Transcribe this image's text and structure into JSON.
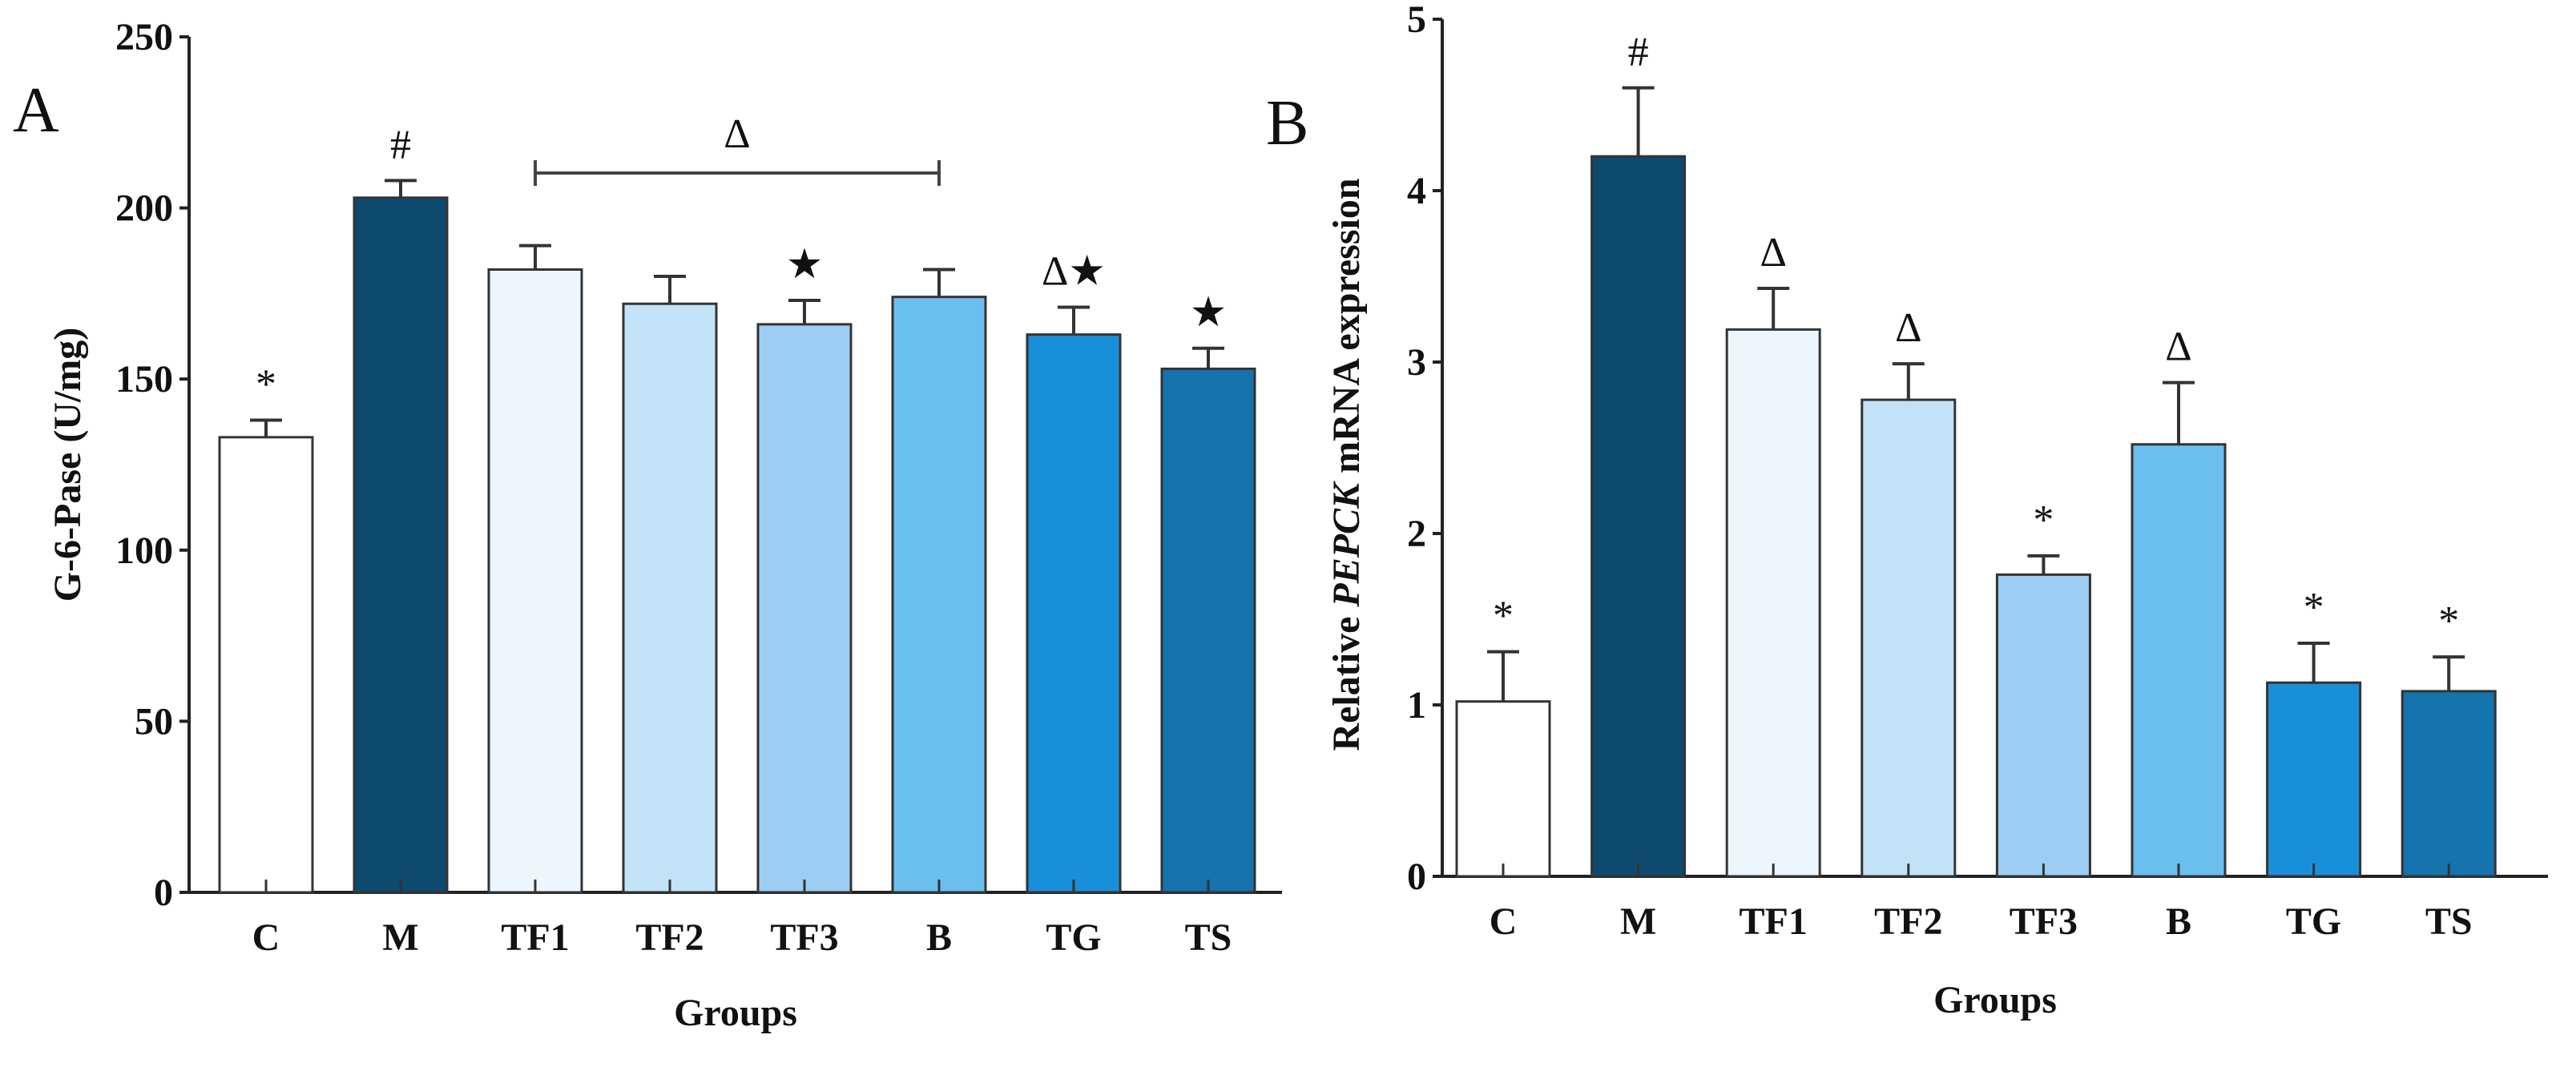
{
  "chart_data": [
    {
      "type": "bar",
      "panel_label": "A",
      "title": "",
      "xlabel": "Groups",
      "ylabel": "G-6-Pase (U/mg)",
      "ylim": [
        0,
        250
      ],
      "yticks": [
        0,
        50,
        100,
        150,
        200,
        250
      ],
      "categories": [
        "C",
        "M",
        "TF1",
        "TF2",
        "TF3",
        "B",
        "TG",
        "TS"
      ],
      "values": [
        133,
        203,
        182,
        172,
        166,
        174,
        163,
        153
      ],
      "errors": [
        5,
        5,
        7,
        8,
        7,
        8,
        8,
        6
      ],
      "annotations": [
        "*",
        "#",
        "",
        "",
        "★",
        "",
        "Δ★",
        "★"
      ],
      "bracket": {
        "from": "TF1",
        "to": "B",
        "label": "Δ"
      },
      "colors": [
        "#ffffff",
        "#0d4a6e",
        "#eef6fd",
        "#c2e3f7",
        "#9dcdf2",
        "#6bbfee",
        "#1a8fd9",
        "#1573ad"
      ]
    },
    {
      "type": "bar",
      "panel_label": "B",
      "title": "",
      "xlabel": "Groups",
      "ylabel_parts": [
        "Relative ",
        "PEPCK",
        " mRNA expression"
      ],
      "ylim": [
        0,
        5
      ],
      "yticks": [
        0,
        1,
        2,
        3,
        4,
        5
      ],
      "categories": [
        "C",
        "M",
        "TF1",
        "TF2",
        "TF3",
        "B",
        "TG",
        "TS"
      ],
      "values": [
        1.02,
        4.2,
        3.19,
        2.78,
        1.76,
        2.52,
        1.13,
        1.08
      ],
      "errors": [
        0.29,
        0.4,
        0.24,
        0.21,
        0.11,
        0.36,
        0.23,
        0.2
      ],
      "annotations": [
        "*",
        "#",
        "Δ",
        "Δ",
        "*",
        "Δ",
        "*",
        "*"
      ],
      "colors": [
        "#ffffff",
        "#0d4a6e",
        "#eef6fd",
        "#c2e3f7",
        "#9dcdf2",
        "#6bbfee",
        "#1a8fd9",
        "#1573ad"
      ]
    }
  ]
}
